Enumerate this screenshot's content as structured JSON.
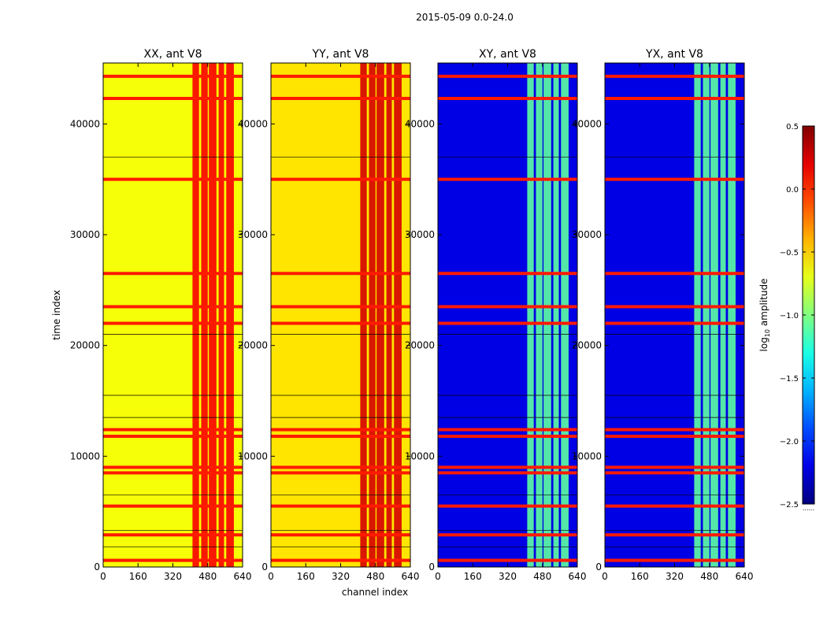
{
  "chart_data": {
    "type": "heatmap",
    "title": "2015-05-09 0.0-24.0",
    "xlabel": "channel index",
    "ylabel": "time index",
    "xlim": [
      0,
      640
    ],
    "ylim": [
      0,
      45500
    ],
    "x_ticks": [
      "0",
      "160",
      "320",
      "480",
      "640"
    ],
    "y_ticks": [
      "0",
      "10000",
      "20000",
      "30000",
      "40000"
    ],
    "colorbar": {
      "label_prefix": "log",
      "label_sub": "10",
      "label_suffix": " amplitude",
      "min": -2.5,
      "max": 0.5,
      "ticks": [
        "0.5",
        "0.0",
        "−0.5",
        "−1.0",
        "−1.5",
        "−2.0",
        "−2.5"
      ],
      "colormap": "jet",
      "footer": "......"
    },
    "panels": [
      {
        "title": "XX, ant V8",
        "base_value": -0.65,
        "band_value": 0.15,
        "flag_value": 0.05
      },
      {
        "title": "YY, ant V8",
        "base_value": -0.55,
        "band_value": 0.25,
        "flag_value": 0.05
      },
      {
        "title": "XY, ant V8",
        "base_value": -2.2,
        "band_value": -1.1,
        "flag_value": 0.05
      },
      {
        "title": "YX, ant V8",
        "base_value": -2.2,
        "band_value": -1.1,
        "flag_value": 0.05
      }
    ],
    "rfi_channel_ranges": [
      [
        410,
        440
      ],
      [
        450,
        480
      ],
      [
        485,
        520
      ],
      [
        530,
        555
      ],
      [
        565,
        600
      ]
    ],
    "flagged_time_rows": [
      600,
      2900,
      5500,
      8500,
      9000,
      11800,
      12400,
      22000,
      23500,
      26500,
      35000,
      42300,
      44300
    ],
    "thin_lines": [
      1800,
      3300,
      6500,
      13500,
      15500,
      21000,
      37000
    ]
  }
}
